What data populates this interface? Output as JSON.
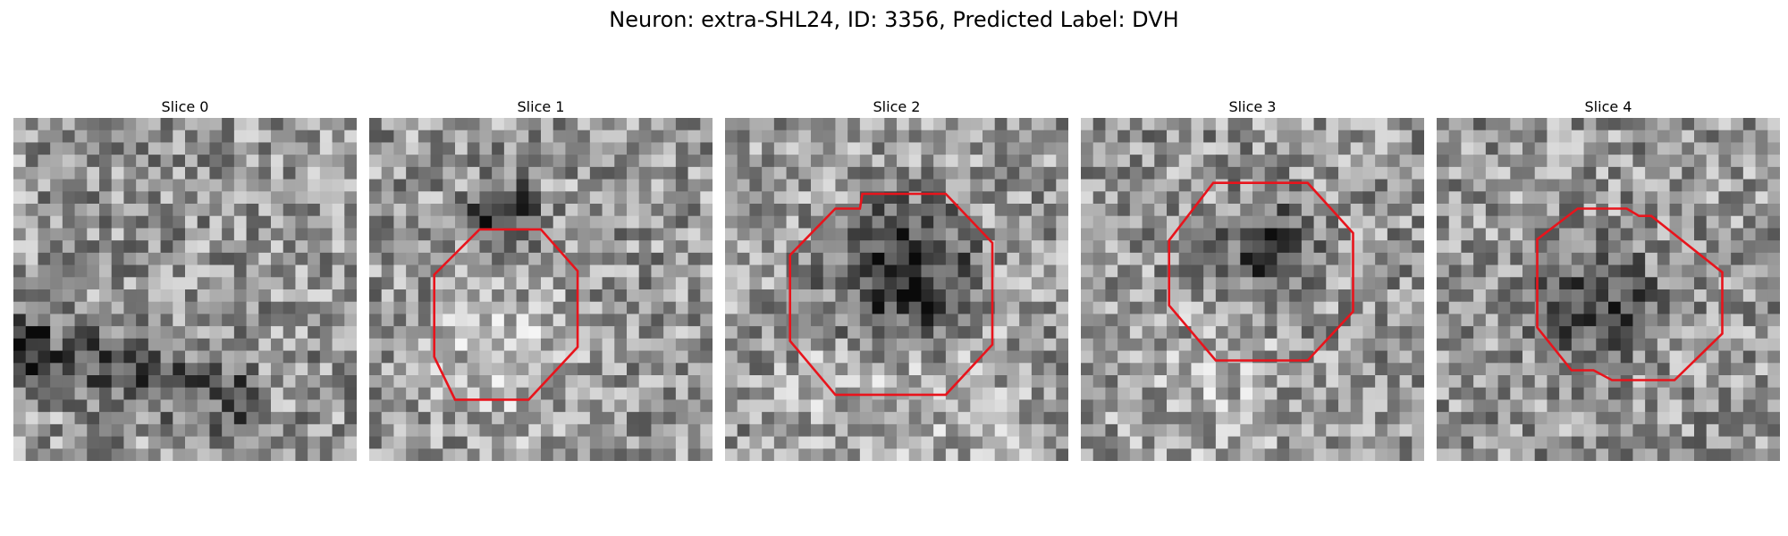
{
  "figure": {
    "title": "Neuron: extra-SHL24, ID: 3356, Predicted Label: DVH"
  },
  "panels": [
    {
      "title": "Slice 0",
      "contour_visible": false
    },
    {
      "title": "Slice 1",
      "contour_visible": true
    },
    {
      "title": "Slice 2",
      "contour_visible": true
    },
    {
      "title": "Slice 3",
      "contour_visible": true
    },
    {
      "title": "Slice 4",
      "contour_visible": true
    }
  ],
  "colors": {
    "contour": "#e8141c",
    "background": "#ffffff"
  }
}
